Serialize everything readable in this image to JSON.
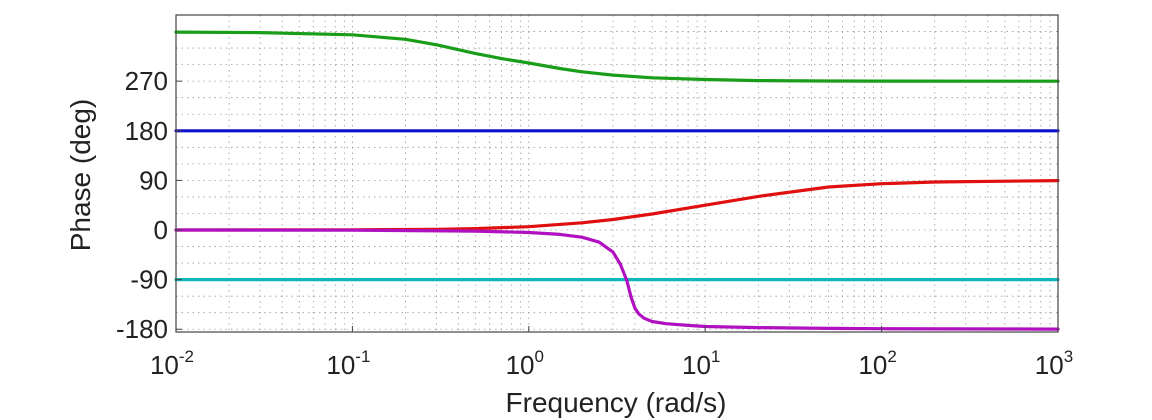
{
  "chart_data": {
    "type": "line",
    "title": "",
    "xlabel": "Frequency  (rad/s)",
    "ylabel": "Phase (deg)",
    "xscale": "log",
    "xlim": [
      0.01,
      1000
    ],
    "ylim": [
      -185,
      390
    ],
    "grid": true,
    "legend": "none",
    "x_ticks": [
      {
        "base": "10",
        "exp": "-2",
        "value": 0.01
      },
      {
        "base": "10",
        "exp": "-1",
        "value": 0.1
      },
      {
        "base": "10",
        "exp": "0",
        "value": 1
      },
      {
        "base": "10",
        "exp": "1",
        "value": 10
      },
      {
        "base": "10",
        "exp": "2",
        "value": 100
      },
      {
        "base": "10",
        "exp": "3",
        "value": 1000
      }
    ],
    "y_ticks": [
      {
        "label": "270",
        "value": 270
      },
      {
        "label": "180",
        "value": 180
      },
      {
        "label": "90",
        "value": 90
      },
      {
        "label": "0",
        "value": 0
      },
      {
        "label": "-90",
        "value": -90
      },
      {
        "label": "-180",
        "value": -180
      }
    ],
    "series": [
      {
        "color": "#1a9e1a",
        "x": [
          0.01,
          0.03,
          0.1,
          0.2,
          0.3,
          0.5,
          0.7,
          1,
          1.5,
          2,
          3,
          5,
          10,
          20,
          50,
          100,
          1000
        ],
        "y": [
          359,
          358,
          354,
          346,
          336,
          320,
          311,
          303,
          293,
          287,
          281,
          276,
          273,
          271,
          270.3,
          270.1,
          270
        ]
      },
      {
        "color": "#1010d0",
        "x": [
          0.01,
          1000
        ],
        "y": [
          180,
          180
        ]
      },
      {
        "color": "#e01010",
        "x": [
          0.01,
          0.1,
          0.3,
          0.5,
          1,
          2,
          3,
          5,
          10,
          20,
          50,
          100,
          200,
          1000
        ],
        "y": [
          0,
          0.3,
          1.2,
          2.5,
          6,
          13,
          19,
          29,
          45,
          61,
          78,
          84,
          87,
          89.6
        ]
      },
      {
        "color": "#10b8b8",
        "x": [
          0.01,
          1000
        ],
        "y": [
          -90,
          -90
        ]
      },
      {
        "color": "#b010c0",
        "x": [
          0.01,
          0.1,
          0.5,
          1,
          1.5,
          2,
          2.5,
          3,
          3.3,
          3.6,
          3.8,
          4.0,
          4.2,
          4.5,
          5,
          6,
          8,
          10,
          20,
          50,
          100,
          1000
        ],
        "y": [
          0,
          -0.3,
          -2,
          -4.5,
          -8,
          -13,
          -22,
          -40,
          -62,
          -92,
          -122,
          -142,
          -152,
          -160,
          -166,
          -170,
          -173,
          -175,
          -177,
          -178.5,
          -179,
          -179.8
        ]
      }
    ]
  }
}
